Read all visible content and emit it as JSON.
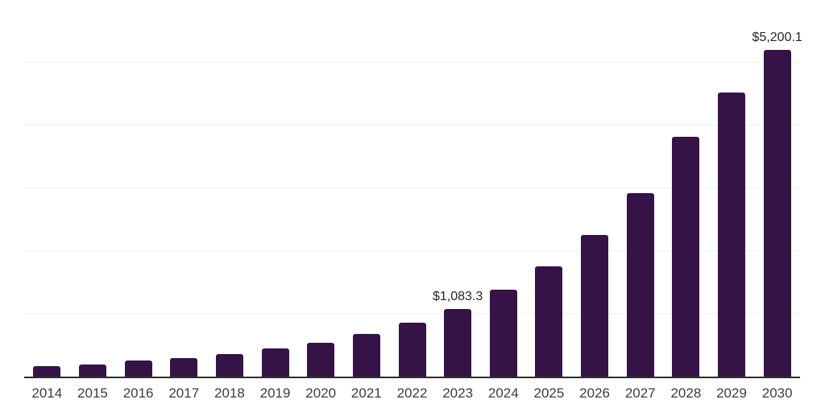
{
  "chart_data": {
    "type": "bar",
    "title": "",
    "xlabel": "",
    "ylabel": "",
    "categories": [
      "2014",
      "2015",
      "2016",
      "2017",
      "2018",
      "2019",
      "2020",
      "2021",
      "2022",
      "2023",
      "2024",
      "2025",
      "2026",
      "2027",
      "2028",
      "2029",
      "2030"
    ],
    "values": [
      165,
      195,
      255,
      298,
      365,
      443,
      537,
      678,
      862,
      1083.3,
      1380,
      1763,
      2260,
      2930,
      3820,
      4530,
      5200.1
    ],
    "data_labels": [
      "",
      "",
      "",
      "",
      "",
      "",
      "",
      "",
      "",
      "$1,083.3",
      "",
      "",
      "",
      "",
      "",
      "",
      ""
    ],
    "ylim": [
      0,
      6000
    ],
    "gridline_step": 1000,
    "grid": "horizontal-only",
    "legend": "none",
    "y_tick_labels": "none",
    "last_bar_label": "$5,200.1",
    "colors": {
      "bar": "#351347",
      "axis_line": "#2e2e2e",
      "gridline": "#f0f0f0",
      "data_label_text": "#262626",
      "tick_label_text": "#3c3c3c",
      "background": "#ffffff"
    }
  }
}
